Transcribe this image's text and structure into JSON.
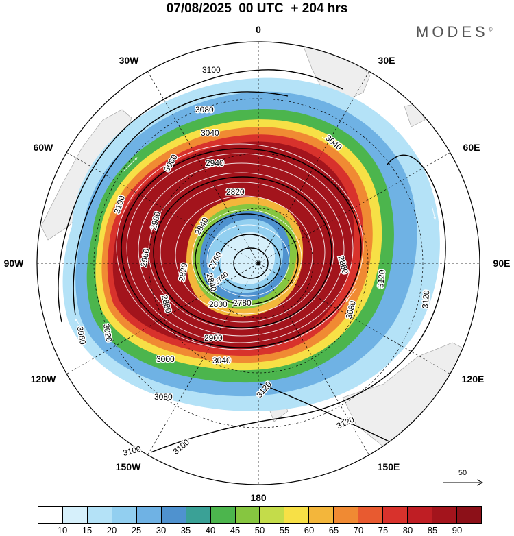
{
  "title": "07/08/2025  00 UTC  + 204 hrs",
  "brand": "MODES",
  "brand_mark": "©",
  "longitude_labels": [
    "0",
    "30E",
    "60E",
    "90E",
    "120E",
    "150E",
    "180",
    "150W",
    "120W",
    "90W",
    "60W",
    "30W"
  ],
  "reference_vector": {
    "label": "50",
    "icon": "arrow-right-icon"
  },
  "colorbar": {
    "colors": [
      "#ffffff",
      "#d6f0fb",
      "#b4e2f7",
      "#92cff0",
      "#6fb2e4",
      "#4f92cf",
      "#3aa196",
      "#4cb54d",
      "#86c640",
      "#c4dc4a",
      "#f7e046",
      "#f3b63b",
      "#f08a33",
      "#e85a30",
      "#d8322c",
      "#bf1e24",
      "#a3141c",
      "#8c1018"
    ],
    "ticks": [
      "10",
      "15",
      "20",
      "25",
      "30",
      "35",
      "40",
      "45",
      "50",
      "55",
      "60",
      "65",
      "70",
      "75",
      "80",
      "85",
      "90"
    ]
  },
  "contour_labels": [
    "3100",
    "3100",
    "3100",
    "3100",
    "3080",
    "3080",
    "3080",
    "3080",
    "3060",
    "3040",
    "3040",
    "3040",
    "3020",
    "3000",
    "2980",
    "2960",
    "2940",
    "2900",
    "2880",
    "2860",
    "2840",
    "2840",
    "2820",
    "2820",
    "2800",
    "2780",
    "2760",
    "2740",
    "3120",
    "3120",
    "3120",
    "3120"
  ]
}
